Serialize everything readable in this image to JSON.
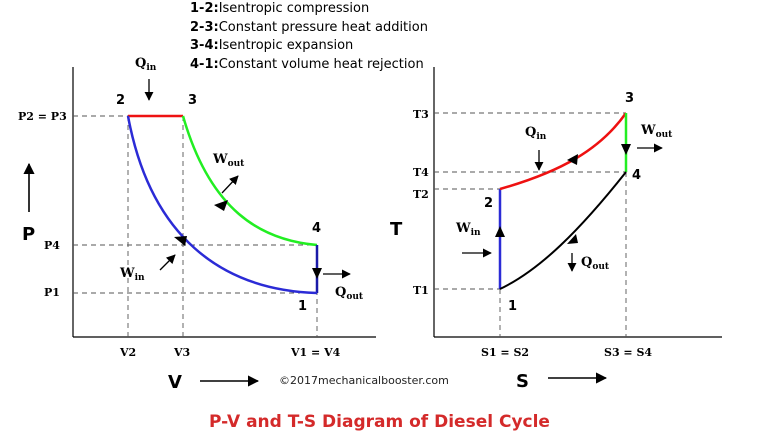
{
  "legend": [
    {
      "key": "1-2:",
      "text": "Isentropic compression"
    },
    {
      "key": "2-3:",
      "text": "Constant pressure heat addition"
    },
    {
      "key": "3-4:",
      "text": "Isentropic expansion"
    },
    {
      "key": "4-1:",
      "text": "Constant volume heat rejection"
    }
  ],
  "pv": {
    "axis_x": "V",
    "axis_y": "P",
    "ticks_y": [
      "P2 = P3",
      "P4",
      "P1"
    ],
    "ticks_x": [
      "V2",
      "V3",
      "V1 = V4"
    ],
    "points": {
      "p1": "1",
      "p2": "2",
      "p3": "3",
      "p4": "4"
    },
    "q_in": {
      "main": "Q",
      "sub": "in"
    },
    "q_out": {
      "main": "Q",
      "sub": "out"
    },
    "w_out": {
      "main": "W",
      "sub": "out"
    },
    "w_in": {
      "main": "W",
      "sub": "in"
    }
  },
  "ts": {
    "axis_x": "S",
    "axis_y": "T",
    "ticks_y": [
      "T3",
      "T4",
      "T2",
      "T1"
    ],
    "ticks_x": [
      "S1 = S2",
      "S3 = S4"
    ],
    "points": {
      "p1": "1",
      "p2": "2",
      "p3": "3",
      "p4": "4"
    },
    "q_in": {
      "main": "Q",
      "sub": "in"
    },
    "q_out": {
      "main": "Q",
      "sub": "out"
    },
    "w_out": {
      "main": "W",
      "sub": "out"
    },
    "w_in": {
      "main": "W",
      "sub": "in"
    }
  },
  "credit": "©2017mechanicalbooster.com",
  "caption": "P-V and T-S Diagram of Diesel Cycle",
  "colors": {
    "compression": "#2b2bd6",
    "heat_addition": "#ee1111",
    "expansion": "#22ee22",
    "heat_rejection": "#1a1aa8",
    "caption": "#d42a2a"
  }
}
